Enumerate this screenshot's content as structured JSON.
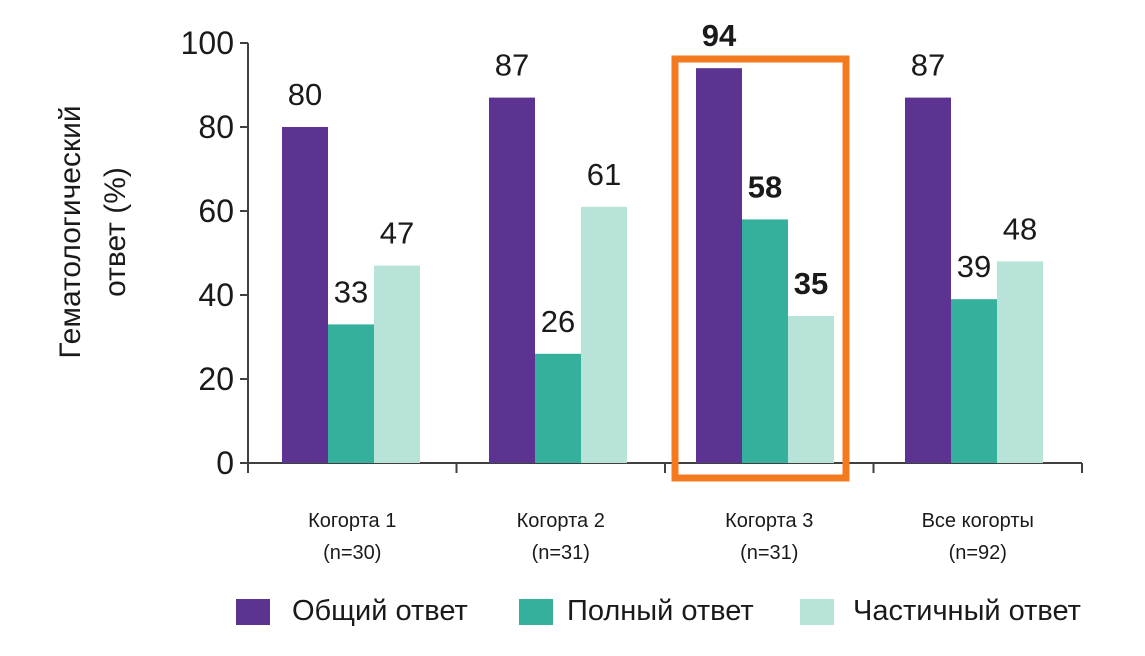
{
  "chart_data": {
    "type": "bar",
    "ylabel_lines": [
      "Гематологический",
      "ответ (%)"
    ],
    "ylim": [
      0,
      100
    ],
    "yticks": [
      "0",
      "20",
      "40",
      "60",
      "80",
      "100"
    ],
    "categories": [
      {
        "line1": "Когорта 1",
        "line2": "(n=30)"
      },
      {
        "line1": "Когорта 2",
        "line2": "(n=31)"
      },
      {
        "line1": "Когорта 3",
        "line2": "(n=31)"
      },
      {
        "line1": "Все когорты",
        "line2": "(n=92)"
      }
    ],
    "series": [
      {
        "name": "Общий ответ",
        "color": "#5c3390",
        "values": [
          80,
          87,
          94,
          87
        ],
        "labels": [
          "80",
          "87",
          "94",
          "87"
        ]
      },
      {
        "name": "Полный ответ",
        "color": "#35b09d",
        "values": [
          33,
          26,
          58,
          39
        ],
        "labels": [
          "33",
          "26",
          "58",
          "39"
        ]
      },
      {
        "name": "Частичный ответ",
        "color": "#b8e3d8",
        "values": [
          47,
          61,
          35,
          48
        ],
        "labels": [
          "47",
          "61",
          "35",
          "48"
        ]
      }
    ],
    "highlighted_category_index": 2,
    "highlight_color": "#f47a20",
    "legend_position": "bottom"
  }
}
